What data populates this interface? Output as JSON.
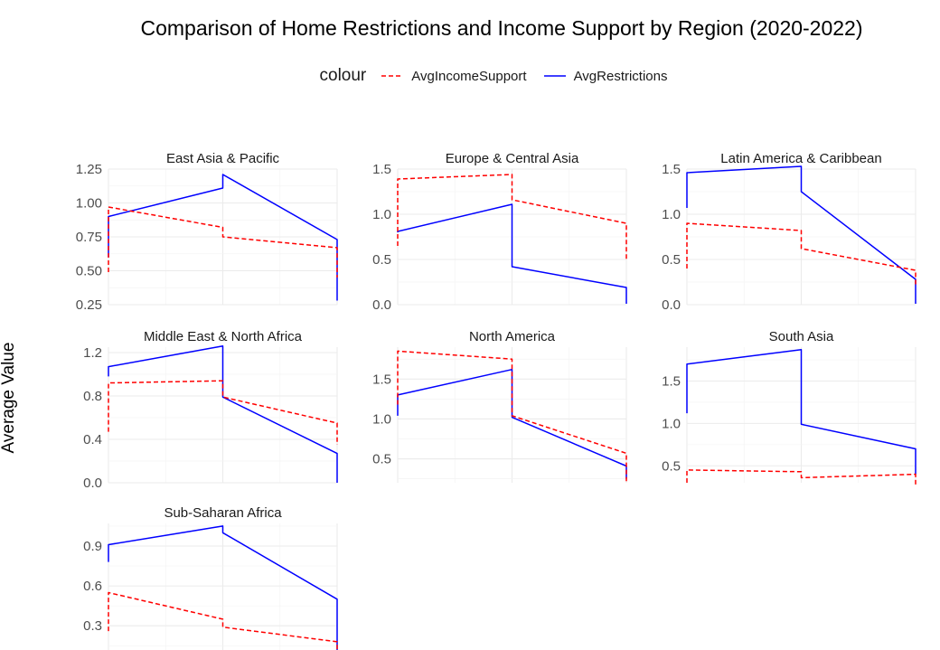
{
  "chart_data": {
    "type": "line",
    "title": "Comparison of Home Restrictions and Income Support by Region (2020-2022)",
    "ylabel": "Average Value",
    "xlabel": "",
    "grid": true,
    "legend": {
      "title": "colour",
      "position": "top",
      "entries": [
        {
          "name": "AvgIncomeSupport",
          "color": "#ff0000",
          "style": "dashed"
        },
        {
          "name": "AvgRestrictions",
          "color": "#0000ff",
          "style": "solid"
        }
      ]
    },
    "x_range": [
      0,
      2
    ],
    "panels": [
      {
        "name": "East Asia & Pacific",
        "ylim": [
          0.25,
          1.25
        ],
        "yticks": [
          0.25,
          0.5,
          0.75,
          1.0,
          1.25
        ],
        "ytick_labels": [
          "0.25",
          "0.50",
          "0.75",
          "1.00",
          "1.25"
        ],
        "series": [
          {
            "name": "AvgRestrictions",
            "x": [
              0,
              0,
              1,
              1,
              2,
              2
            ],
            "y": [
              0.6,
              0.9,
              1.11,
              1.21,
              0.73,
              0.28
            ]
          },
          {
            "name": "AvgIncomeSupport",
            "x": [
              0,
              0,
              1,
              1,
              2,
              2
            ],
            "y": [
              0.49,
              0.97,
              0.82,
              0.75,
              0.67,
              0.45
            ]
          }
        ]
      },
      {
        "name": "Europe & Central Asia",
        "ylim": [
          0.0,
          1.5
        ],
        "yticks": [
          0.0,
          0.5,
          1.0,
          1.5
        ],
        "ytick_labels": [
          "0.0",
          "0.5",
          "1.0",
          "1.5"
        ],
        "series": [
          {
            "name": "AvgRestrictions",
            "x": [
              0,
              0,
              1,
              1,
              2,
              2
            ],
            "y": [
              0.8,
              0.81,
              1.11,
              0.42,
              0.19,
              0.01
            ]
          },
          {
            "name": "AvgIncomeSupport",
            "x": [
              0,
              0,
              1,
              1,
              2,
              2
            ],
            "y": [
              0.65,
              1.39,
              1.44,
              1.16,
              0.9,
              0.5
            ]
          }
        ]
      },
      {
        "name": "Latin America & Caribbean",
        "ylim": [
          0.0,
          1.5
        ],
        "yticks": [
          0.0,
          0.5,
          1.0,
          1.5
        ],
        "ytick_labels": [
          "0.0",
          "0.5",
          "1.0",
          "1.5"
        ],
        "series": [
          {
            "name": "AvgRestrictions",
            "x": [
              0,
              0,
              1,
              1,
              2,
              2
            ],
            "y": [
              1.07,
              1.46,
              1.53,
              1.25,
              0.28,
              0.01
            ]
          },
          {
            "name": "AvgIncomeSupport",
            "x": [
              0,
              0,
              1,
              1,
              2,
              2
            ],
            "y": [
              0.4,
              0.9,
              0.82,
              0.62,
              0.38,
              0.22
            ]
          }
        ]
      },
      {
        "name": "Middle East & North Africa",
        "ylim": [
          0.0,
          1.25
        ],
        "yticks": [
          0.0,
          0.4,
          0.8,
          1.2
        ],
        "ytick_labels": [
          "0.0",
          "0.4",
          "0.8",
          "1.2"
        ],
        "series": [
          {
            "name": "AvgRestrictions",
            "x": [
              0,
              0,
              1,
              1,
              2,
              2
            ],
            "y": [
              0.98,
              1.07,
              1.26,
              0.79,
              0.27,
              0.0
            ]
          },
          {
            "name": "AvgIncomeSupport",
            "x": [
              0,
              0,
              1,
              1,
              2,
              2
            ],
            "y": [
              0.47,
              0.92,
              0.94,
              0.79,
              0.55,
              0.35
            ]
          }
        ]
      },
      {
        "name": "North America",
        "ylim": [
          0.2,
          1.9
        ],
        "yticks": [
          0.5,
          1.0,
          1.5
        ],
        "ytick_labels": [
          "0.5",
          "1.0",
          "1.5"
        ],
        "series": [
          {
            "name": "AvgRestrictions",
            "x": [
              0,
              0,
              1,
              1,
              2,
              2
            ],
            "y": [
              1.04,
              1.3,
              1.62,
              1.02,
              0.41,
              0.25
            ]
          },
          {
            "name": "AvgIncomeSupport",
            "x": [
              0,
              0,
              1,
              1,
              2,
              2
            ],
            "y": [
              1.18,
              1.85,
              1.75,
              1.04,
              0.57,
              0.22
            ]
          }
        ]
      },
      {
        "name": "South Asia",
        "ylim": [
          0.3,
          1.9
        ],
        "yticks": [
          0.5,
          1.0,
          1.5
        ],
        "ytick_labels": [
          "0.5",
          "1.0",
          "1.5"
        ],
        "series": [
          {
            "name": "AvgRestrictions",
            "x": [
              0,
              0,
              1,
              1,
              2,
              2
            ],
            "y": [
              1.12,
              1.7,
              1.87,
              0.99,
              0.7,
              0.4
            ]
          },
          {
            "name": "AvgIncomeSupport",
            "x": [
              0,
              0,
              1,
              1,
              2,
              2
            ],
            "y": [
              0.3,
              0.45,
              0.43,
              0.36,
              0.4,
              0.28
            ]
          }
        ]
      },
      {
        "name": "Sub-Saharan Africa",
        "ylim": [
          0.05,
          1.07
        ],
        "yticks": [
          0.3,
          0.6,
          0.9
        ],
        "ytick_labels": [
          "0.3",
          "0.6",
          "0.9"
        ],
        "series": [
          {
            "name": "AvgRestrictions",
            "x": [
              0,
              0,
              1,
              1,
              2,
              2
            ],
            "y": [
              0.78,
              0.91,
              1.05,
              1.0,
              0.5,
              0.07
            ]
          },
          {
            "name": "AvgIncomeSupport",
            "x": [
              0,
              0,
              1,
              1,
              2,
              2
            ],
            "y": [
              0.26,
              0.55,
              0.35,
              0.29,
              0.18,
              0.08
            ]
          }
        ]
      }
    ]
  }
}
